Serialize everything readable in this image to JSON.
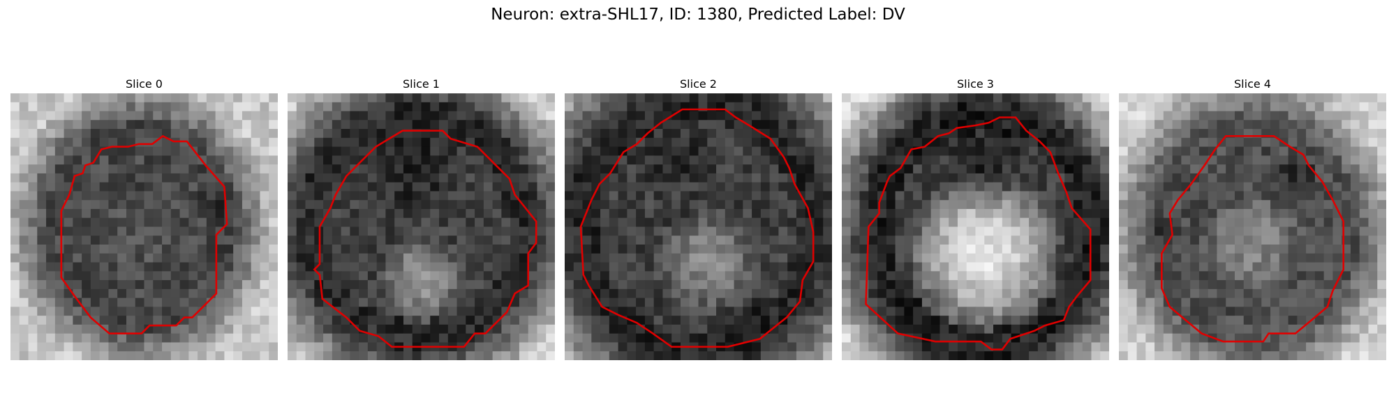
{
  "figure": {
    "title": "Neuron: extra-SHL17, ID: 1380, Predicted Label: DV",
    "contour_color": "#e00000",
    "colormap": "gray"
  },
  "slices": [
    {
      "title": "Slice 0",
      "outline": "dark irregular blob",
      "brightness": "dark interior"
    },
    {
      "title": "Slice 1",
      "outline": "round",
      "brightness": "dark top, lighter bottom"
    },
    {
      "title": "Slice 2",
      "outline": "round",
      "brightness": "dark with lighter center"
    },
    {
      "title": "Slice 3",
      "outline": "round",
      "brightness": "dark rim top, bright interior"
    },
    {
      "title": "Slice 4",
      "outline": "round",
      "brightness": "medium gray interior, dark patches"
    }
  ]
}
